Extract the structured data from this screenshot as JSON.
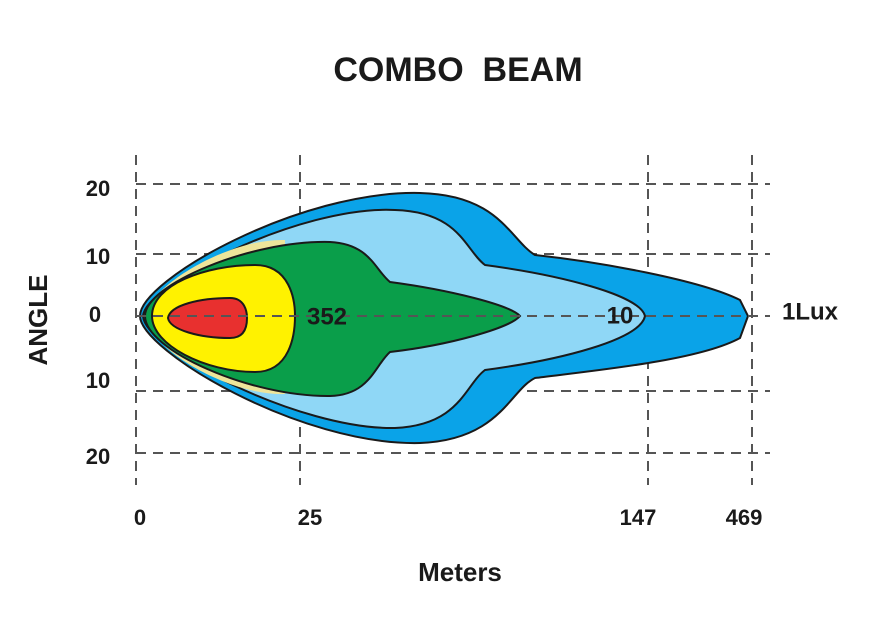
{
  "title": "COMBO  BEAM",
  "y_axis": {
    "label": "ANGLE",
    "ticks": [
      "20",
      "10",
      "0",
      "10",
      "20"
    ]
  },
  "x_axis": {
    "label": "Meters",
    "ticks": [
      "0",
      "25",
      "147",
      "469"
    ]
  },
  "annotations": [
    "352",
    "10",
    "1Lux"
  ]
}
